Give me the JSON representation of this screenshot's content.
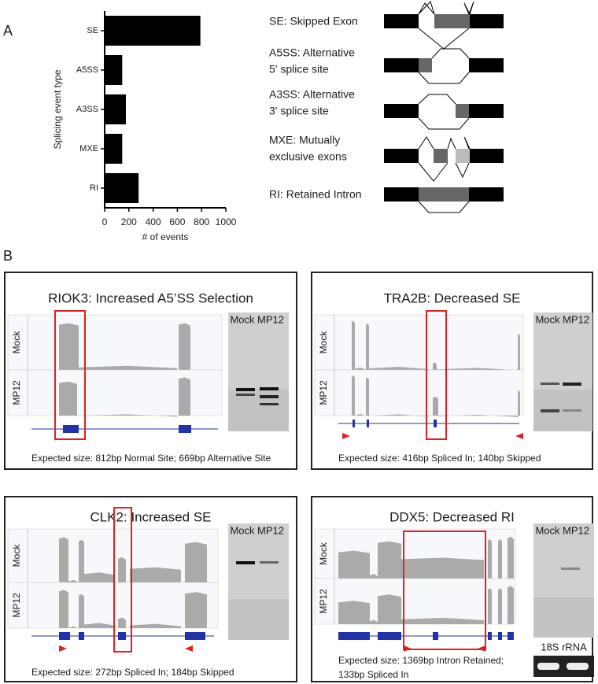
{
  "chart_data": {
    "type": "bar",
    "orientation": "horizontal",
    "categories": [
      "SE",
      "A5SS",
      "A3SS",
      "MXE",
      "RI"
    ],
    "values": [
      790,
      145,
      175,
      145,
      280
    ],
    "color": "#000000",
    "xlim": [
      0,
      1000
    ],
    "xticks": [
      0,
      200,
      400,
      600,
      800,
      1000
    ],
    "x_label": "# of events",
    "y_label": "Splicing event type"
  },
  "panel_labels": [
    "A",
    "B"
  ],
  "event_legend": [
    [
      "SE: Skipped Exon"
    ],
    [
      "A5SS: Alternative",
      "5' splice site"
    ],
    [
      "A3SS: Alternative",
      "3' splice site"
    ],
    [
      "MXE: Mutually",
      "exclusive exons"
    ],
    [
      "RI: Retained Intron"
    ]
  ],
  "panels": [
    {
      "title": "RIOK3: Increased A5’SS Selection",
      "tracks": [
        "Mock",
        "MP12"
      ],
      "gel_labels": [
        "Mock",
        "MP12"
      ],
      "caption": [
        "Expected size: 812bp Normal Site; 669bp Alternative Site"
      ]
    },
    {
      "title": "TRA2B: Decreased SE",
      "tracks": [
        "Mock",
        "MP12"
      ],
      "gel_labels": [
        "Mock",
        "MP12"
      ],
      "caption": [
        "Expected size: 416bp Spliced In; 140bp Skipped"
      ]
    },
    {
      "title": "CLK2: Increased SE",
      "tracks": [
        "Mock",
        "MP12"
      ],
      "gel_labels": [
        "Mock",
        "MP12"
      ],
      "caption": [
        "Expected size: 272bp Spliced In; 184bp Skipped"
      ]
    },
    {
      "title": "DDX5: Decreased RI",
      "tracks": [
        "Mock",
        "MP12"
      ],
      "gel_labels": [
        "Mock",
        "MP12"
      ],
      "caption": [
        "Expected size: 1369bp Intron Retained;",
        "133bp Spliced In"
      ],
      "extra_label": "18S rRNA"
    }
  ]
}
